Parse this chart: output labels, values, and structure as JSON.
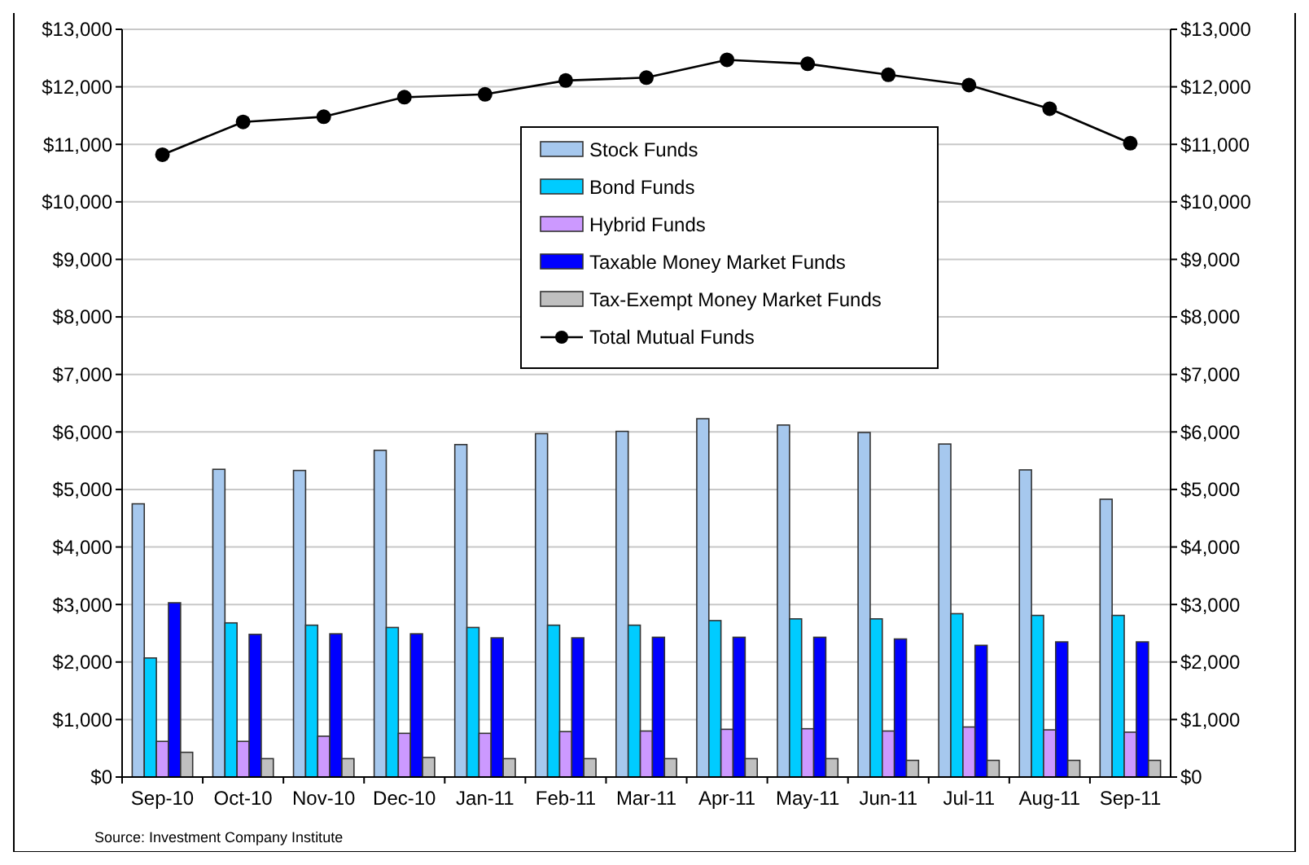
{
  "chart_data": {
    "type": "bar",
    "categories": [
      "Sep-10",
      "Oct-10",
      "Nov-10",
      "Dec-10",
      "Jan-11",
      "Feb-11",
      "Mar-11",
      "Apr-11",
      "May-11",
      "Jun-11",
      "Jul-11",
      "Aug-11",
      "Sep-11"
    ],
    "series": [
      {
        "name": "Stock Funds",
        "color": "#a6c8ee",
        "values": [
          4750,
          5350,
          5330,
          5680,
          5780,
          5970,
          6010,
          6230,
          6120,
          5990,
          5790,
          5340,
          4830
        ]
      },
      {
        "name": "Bond Funds",
        "color": "#00ccff",
        "values": [
          2070,
          2680,
          2640,
          2600,
          2600,
          2640,
          2640,
          2720,
          2750,
          2750,
          2840,
          2810,
          2810
        ]
      },
      {
        "name": "Hybrid Funds",
        "color": "#cc99ff",
        "values": [
          620,
          620,
          710,
          760,
          760,
          790,
          800,
          830,
          840,
          800,
          870,
          820,
          780
        ]
      },
      {
        "name": "Taxable Money Market Funds",
        "color": "#0000ff",
        "values": [
          3030,
          2480,
          2490,
          2490,
          2420,
          2420,
          2430,
          2430,
          2430,
          2400,
          2290,
          2350,
          2350
        ]
      },
      {
        "name": "Tax-Exempt Money Market Funds",
        "color": "#c0c0c0",
        "values": [
          430,
          320,
          320,
          340,
          320,
          320,
          320,
          320,
          320,
          290,
          290,
          290,
          290
        ]
      },
      {
        "name": "Total Mutual Funds",
        "type": "line",
        "color": "#000000",
        "marker": "circle",
        "values": [
          10820,
          11390,
          11480,
          11820,
          11870,
          12110,
          12160,
          12470,
          12400,
          12210,
          12030,
          11620,
          11020
        ]
      }
    ],
    "ylim": [
      0,
      13000
    ],
    "yticks": [
      {
        "value": 0,
        "label": "$0"
      },
      {
        "value": 1000,
        "label": "$1,000"
      },
      {
        "value": 2000,
        "label": "$2,000"
      },
      {
        "value": 3000,
        "label": "$3,000"
      },
      {
        "value": 4000,
        "label": "$4,000"
      },
      {
        "value": 5000,
        "label": "$5,000"
      },
      {
        "value": 6000,
        "label": "$6,000"
      },
      {
        "value": 7000,
        "label": "$7,000"
      },
      {
        "value": 8000,
        "label": "$8,000"
      },
      {
        "value": 9000,
        "label": "$9,000"
      },
      {
        "value": 10000,
        "label": "$10,000"
      },
      {
        "value": 11000,
        "label": "$11,000"
      },
      {
        "value": 12000,
        "label": "$12,000"
      },
      {
        "value": 13000,
        "label": "$13,000"
      }
    ],
    "y2lim": [
      0,
      13000
    ],
    "y2ticks": [
      {
        "value": 0,
        "label": "$0"
      },
      {
        "value": 1000,
        "label": "$1,000"
      },
      {
        "value": 2000,
        "label": "$2,000"
      },
      {
        "value": 3000,
        "label": "$3,000"
      },
      {
        "value": 4000,
        "label": "$4,000"
      },
      {
        "value": 5000,
        "label": "$5,000"
      },
      {
        "value": 6000,
        "label": "$6,000"
      },
      {
        "value": 7000,
        "label": "$7,000"
      },
      {
        "value": 8000,
        "label": "$8,000"
      },
      {
        "value": 9000,
        "label": "$9,000"
      },
      {
        "value": 10000,
        "label": "$10,000"
      },
      {
        "value": 11000,
        "label": "$11,000"
      },
      {
        "value": 12000,
        "label": "$12,000"
      },
      {
        "value": 13000,
        "label": "$13,000"
      }
    ],
    "grid": "y",
    "legend": "top",
    "annotations": [
      "Source: Investment Company Institute"
    ]
  }
}
